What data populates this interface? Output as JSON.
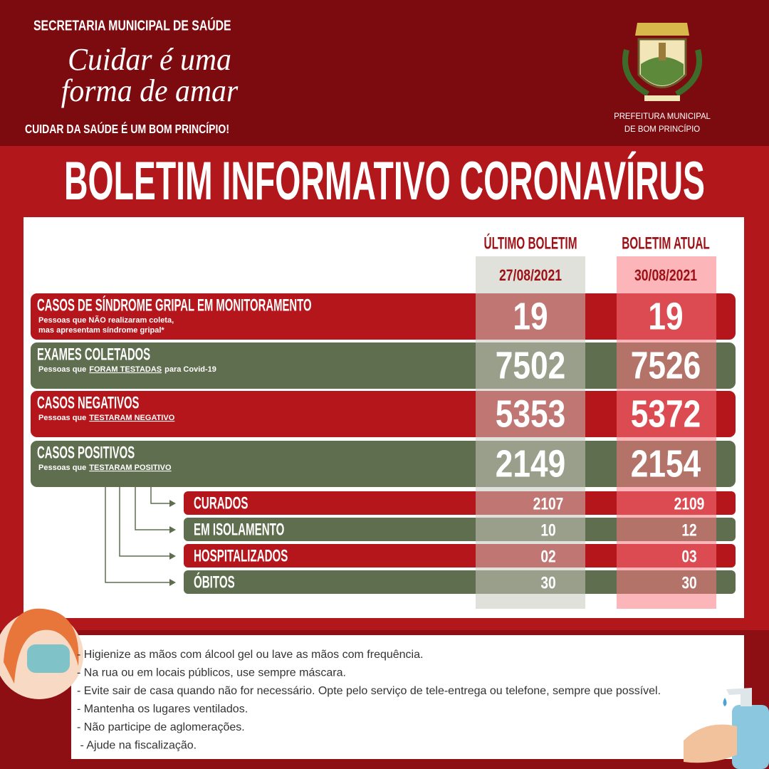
{
  "header": {
    "org": "SECRETARIA MUNICIPAL DE SAÚDE",
    "slogan": [
      "Cuidar é uma",
      "forma de amar"
    ],
    "tagline": "CUIDAR DA SAÚDE É UM BOM PRINCÍPIO!",
    "logo_text": [
      "PREFEITURA MUNICIPAL",
      "DE BOM PRINCÍPIO"
    ]
  },
  "title": "BOLETIM INFORMATIVO CORONAVÍRUS",
  "table": {
    "columns": [
      {
        "label": "ÚLTIMO BOLETIM",
        "date": "27/08/2021"
      },
      {
        "label": "BOLETIM ATUAL",
        "date": "30/08/2021"
      }
    ],
    "rows": [
      {
        "label": "CASOS DE SÍNDROME GRIPAL EM MONITORAMENTO",
        "subtitle": [
          [
            {
              "text": "Pessoas que NÃO realizaram coleta,"
            }
          ],
          [
            {
              "text": "mas apresentam síndrome gripal*"
            }
          ]
        ],
        "values": [
          "19",
          "19"
        ],
        "color": "red"
      },
      {
        "label": "EXAMES COLETADOS",
        "subtitle": [
          [
            {
              "text": "Pessoas que"
            },
            {
              "text": "FORAM TESTADAS",
              "underline": true
            },
            {
              "text": "para Covid-19"
            }
          ]
        ],
        "values": [
          "7502",
          "7526"
        ],
        "color": "green"
      },
      {
        "label": "CASOS NEGATIVOS",
        "subtitle": [
          [
            {
              "text": "Pessoas que"
            },
            {
              "text": "TESTARAM NEGATIVO",
              "underline": true
            }
          ]
        ],
        "values": [
          "5353",
          "5372"
        ],
        "color": "red"
      },
      {
        "label": "CASOS POSITIVOS",
        "subtitle": [
          [
            {
              "text": "Pessoas que"
            },
            {
              "text": "TESTARAM POSITIVO",
              "underline": true
            }
          ]
        ],
        "values": [
          "2149",
          "2154"
        ],
        "color": "green"
      }
    ],
    "subrows": [
      {
        "label": "CURADOS",
        "values": [
          "2107",
          "2109"
        ],
        "color": "red"
      },
      {
        "label": "EM ISOLAMENTO",
        "values": [
          "10",
          "12"
        ],
        "color": "green"
      },
      {
        "label": "HOSPITALIZADOS",
        "values": [
          "02",
          "03"
        ],
        "color": "red"
      },
      {
        "label": "ÓBITOS",
        "values": [
          "30",
          "30"
        ],
        "color": "green"
      }
    ]
  },
  "tips": [
    "- Higienize as mãos com álcool gel ou lave as mãos com frequência.",
    "- Na rua ou em locais públicos, use sempre máscara.",
    "- Evite sair de casa quando não for necessário. Opte pelo serviço de tele-entrega ou telefone, sempre que possível.",
    "- Mantenha os lugares ventilados.",
    "- Não participe de aglomerações.",
    " - Ajude na fiscalização."
  ]
}
